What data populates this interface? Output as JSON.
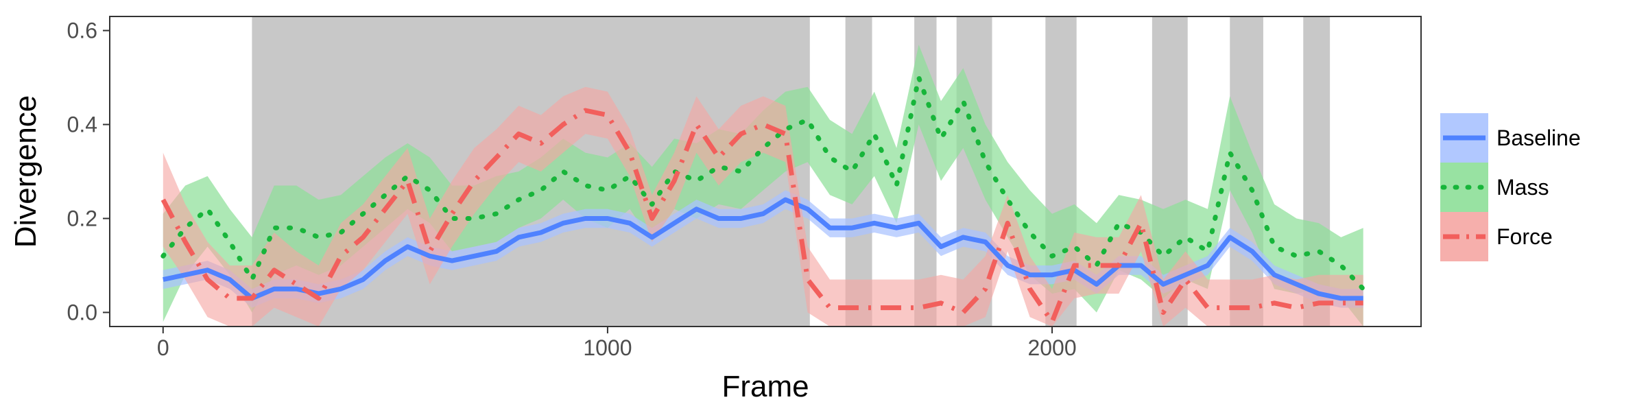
{
  "chart_data": {
    "type": "line",
    "title": "",
    "xlabel": "Frame",
    "ylabel": "Divergence",
    "xlim": [
      -120,
      2830
    ],
    "ylim": [
      -0.03,
      0.63
    ],
    "xticks": [
      0,
      1000,
      2000
    ],
    "xtick_labels": [
      "0",
      "1000",
      "2000"
    ],
    "yticks": [
      0.0,
      0.2,
      0.4,
      0.6
    ],
    "ytick_labels": [
      "0.0",
      "0.2",
      "0.4",
      "0.6"
    ],
    "grid": false,
    "legend_position": "right",
    "shaded_regions": [
      [
        200,
        1455
      ],
      [
        1535,
        1595
      ],
      [
        1690,
        1740
      ],
      [
        1785,
        1865
      ],
      [
        1985,
        2055
      ],
      [
        2225,
        2305
      ],
      [
        2400,
        2475
      ],
      [
        2565,
        2625
      ]
    ],
    "series": [
      {
        "name": "Baseline",
        "color": "#4f82ff",
        "band_color": "#a9c2ff",
        "line_style": "solid",
        "x": [
          0,
          50,
          100,
          150,
          200,
          250,
          300,
          350,
          400,
          450,
          500,
          550,
          600,
          650,
          700,
          750,
          800,
          850,
          900,
          950,
          1000,
          1050,
          1100,
          1150,
          1200,
          1250,
          1300,
          1350,
          1400,
          1450,
          1500,
          1550,
          1600,
          1650,
          1700,
          1750,
          1800,
          1850,
          1900,
          1950,
          2000,
          2050,
          2100,
          2150,
          2200,
          2250,
          2300,
          2350,
          2400,
          2450,
          2500,
          2550,
          2600,
          2650,
          2700
        ],
        "y": [
          0.07,
          0.08,
          0.09,
          0.07,
          0.03,
          0.05,
          0.05,
          0.04,
          0.05,
          0.07,
          0.11,
          0.14,
          0.12,
          0.11,
          0.12,
          0.13,
          0.16,
          0.17,
          0.19,
          0.2,
          0.2,
          0.19,
          0.16,
          0.19,
          0.22,
          0.2,
          0.2,
          0.21,
          0.24,
          0.22,
          0.18,
          0.18,
          0.19,
          0.18,
          0.19,
          0.14,
          0.16,
          0.15,
          0.1,
          0.08,
          0.08,
          0.09,
          0.06,
          0.1,
          0.1,
          0.06,
          0.08,
          0.1,
          0.16,
          0.13,
          0.08,
          0.06,
          0.04,
          0.03,
          0.03
        ],
        "lower": [
          0.05,
          0.06,
          0.07,
          0.05,
          0.01,
          0.03,
          0.03,
          0.02,
          0.03,
          0.05,
          0.09,
          0.12,
          0.1,
          0.09,
          0.1,
          0.11,
          0.14,
          0.15,
          0.17,
          0.18,
          0.18,
          0.17,
          0.14,
          0.17,
          0.2,
          0.18,
          0.18,
          0.19,
          0.22,
          0.2,
          0.16,
          0.16,
          0.17,
          0.16,
          0.17,
          0.12,
          0.14,
          0.13,
          0.08,
          0.06,
          0.06,
          0.07,
          0.04,
          0.08,
          0.08,
          0.04,
          0.06,
          0.08,
          0.14,
          0.11,
          0.06,
          0.04,
          0.02,
          0.01,
          0.01
        ],
        "upper": [
          0.09,
          0.1,
          0.11,
          0.09,
          0.05,
          0.07,
          0.07,
          0.06,
          0.07,
          0.09,
          0.13,
          0.16,
          0.14,
          0.13,
          0.14,
          0.15,
          0.18,
          0.19,
          0.21,
          0.22,
          0.22,
          0.21,
          0.18,
          0.21,
          0.24,
          0.22,
          0.22,
          0.23,
          0.26,
          0.24,
          0.2,
          0.2,
          0.21,
          0.2,
          0.21,
          0.16,
          0.18,
          0.17,
          0.12,
          0.1,
          0.1,
          0.11,
          0.08,
          0.12,
          0.12,
          0.08,
          0.1,
          0.12,
          0.18,
          0.15,
          0.1,
          0.08,
          0.06,
          0.05,
          0.05
        ]
      },
      {
        "name": "Mass",
        "color": "#17b53a",
        "band_color": "#8ddf98",
        "line_style": "dotted",
        "x": [
          0,
          50,
          100,
          150,
          200,
          250,
          300,
          350,
          400,
          450,
          500,
          550,
          600,
          650,
          700,
          750,
          800,
          850,
          900,
          950,
          1000,
          1050,
          1100,
          1150,
          1200,
          1250,
          1300,
          1350,
          1400,
          1450,
          1500,
          1550,
          1600,
          1650,
          1700,
          1750,
          1800,
          1850,
          1900,
          1950,
          2000,
          2050,
          2100,
          2150,
          2200,
          2250,
          2300,
          2350,
          2400,
          2450,
          2500,
          2550,
          2600,
          2650,
          2700
        ],
        "y": [
          0.12,
          0.18,
          0.22,
          0.15,
          0.07,
          0.18,
          0.18,
          0.16,
          0.17,
          0.21,
          0.25,
          0.29,
          0.26,
          0.2,
          0.2,
          0.21,
          0.24,
          0.26,
          0.3,
          0.27,
          0.26,
          0.29,
          0.23,
          0.3,
          0.28,
          0.31,
          0.3,
          0.35,
          0.39,
          0.41,
          0.33,
          0.3,
          0.38,
          0.27,
          0.5,
          0.37,
          0.45,
          0.32,
          0.24,
          0.17,
          0.12,
          0.14,
          0.1,
          0.19,
          0.17,
          0.12,
          0.16,
          0.13,
          0.34,
          0.26,
          0.14,
          0.12,
          0.13,
          0.1,
          0.05
        ],
        "lower": [
          -0.02,
          0.08,
          0.14,
          0.08,
          0.0,
          0.08,
          0.1,
          0.08,
          0.1,
          0.14,
          0.18,
          0.22,
          0.19,
          0.13,
          0.14,
          0.15,
          0.18,
          0.2,
          0.24,
          0.2,
          0.18,
          0.22,
          0.15,
          0.22,
          0.2,
          0.23,
          0.22,
          0.26,
          0.3,
          0.32,
          0.25,
          0.23,
          0.29,
          0.19,
          0.4,
          0.28,
          0.35,
          0.24,
          0.16,
          0.08,
          0.04,
          0.05,
          0.0,
          0.09,
          0.07,
          0.03,
          0.07,
          0.05,
          0.26,
          0.17,
          0.05,
          0.04,
          0.05,
          0.03,
          -0.03
        ],
        "upper": [
          0.21,
          0.27,
          0.29,
          0.22,
          0.16,
          0.27,
          0.27,
          0.24,
          0.25,
          0.29,
          0.33,
          0.36,
          0.33,
          0.27,
          0.27,
          0.29,
          0.3,
          0.33,
          0.37,
          0.34,
          0.33,
          0.36,
          0.31,
          0.37,
          0.36,
          0.39,
          0.38,
          0.43,
          0.47,
          0.48,
          0.41,
          0.38,
          0.47,
          0.35,
          0.57,
          0.45,
          0.52,
          0.4,
          0.32,
          0.26,
          0.21,
          0.23,
          0.19,
          0.25,
          0.24,
          0.22,
          0.24,
          0.22,
          0.46,
          0.34,
          0.23,
          0.2,
          0.19,
          0.16,
          0.18
        ]
      },
      {
        "name": "Force",
        "color": "#f25f5c",
        "band_color": "#f5a6a3",
        "line_style": "dashdot",
        "x": [
          0,
          50,
          100,
          150,
          200,
          250,
          300,
          350,
          400,
          450,
          500,
          550,
          600,
          650,
          700,
          750,
          800,
          850,
          900,
          950,
          1000,
          1050,
          1100,
          1150,
          1200,
          1250,
          1300,
          1350,
          1400,
          1450,
          1500,
          1550,
          1600,
          1650,
          1700,
          1750,
          1800,
          1850,
          1900,
          1950,
          2000,
          2050,
          2100,
          2150,
          2200,
          2250,
          2300,
          2350,
          2400,
          2450,
          2500,
          2550,
          2600,
          2650,
          2700
        ],
        "y": [
          0.24,
          0.15,
          0.07,
          0.03,
          0.03,
          0.09,
          0.06,
          0.03,
          0.12,
          0.16,
          0.22,
          0.28,
          0.13,
          0.21,
          0.28,
          0.33,
          0.38,
          0.36,
          0.4,
          0.43,
          0.42,
          0.34,
          0.2,
          0.28,
          0.4,
          0.33,
          0.38,
          0.4,
          0.38,
          0.07,
          0.01,
          0.01,
          0.01,
          0.01,
          0.01,
          0.02,
          0.0,
          0.05,
          0.19,
          0.05,
          -0.02,
          0.1,
          0.1,
          0.1,
          0.19,
          0.0,
          0.07,
          0.01,
          0.01,
          0.01,
          0.02,
          0.01,
          0.02,
          0.02,
          0.02
        ],
        "lower": [
          0.14,
          0.07,
          -0.01,
          -0.03,
          -0.03,
          0.01,
          -0.01,
          -0.03,
          0.05,
          0.09,
          0.15,
          0.21,
          0.06,
          0.14,
          0.21,
          0.27,
          0.32,
          0.3,
          0.34,
          0.38,
          0.37,
          0.29,
          0.15,
          0.22,
          0.34,
          0.27,
          0.32,
          0.34,
          0.32,
          0.0,
          -0.03,
          -0.03,
          -0.03,
          -0.03,
          -0.03,
          -0.03,
          -0.03,
          -0.01,
          0.13,
          -0.01,
          -0.03,
          0.03,
          0.04,
          0.04,
          0.13,
          -0.03,
          0.01,
          -0.03,
          -0.03,
          -0.03,
          -0.03,
          -0.03,
          -0.03,
          -0.03,
          -0.03
        ],
        "upper": [
          0.34,
          0.23,
          0.15,
          0.1,
          0.1,
          0.17,
          0.13,
          0.1,
          0.19,
          0.23,
          0.29,
          0.35,
          0.2,
          0.28,
          0.35,
          0.39,
          0.44,
          0.42,
          0.46,
          0.48,
          0.47,
          0.39,
          0.25,
          0.34,
          0.46,
          0.39,
          0.44,
          0.46,
          0.44,
          0.14,
          0.07,
          0.07,
          0.07,
          0.07,
          0.07,
          0.08,
          0.07,
          0.12,
          0.25,
          0.12,
          0.05,
          0.17,
          0.16,
          0.16,
          0.25,
          0.07,
          0.13,
          0.07,
          0.07,
          0.07,
          0.08,
          0.07,
          0.08,
          0.08,
          0.08
        ]
      }
    ]
  }
}
